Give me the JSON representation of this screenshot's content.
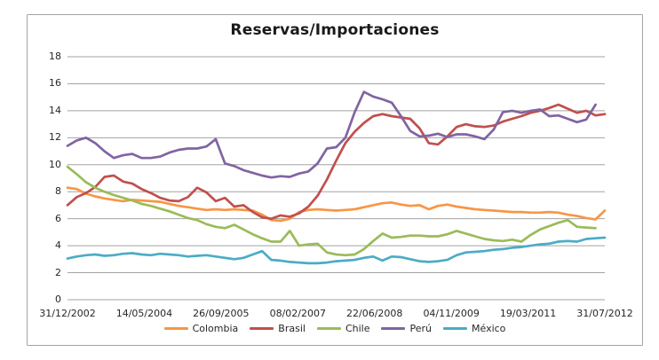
{
  "chart_data": {
    "type": "line",
    "title": "Reservas/Importaciones",
    "xlabel": "",
    "ylabel": "",
    "ylim": [
      0,
      18
    ],
    "ytick_step": 2,
    "grid": true,
    "gridline_color": "#a3a3a3",
    "legend_position": "bottom",
    "x_tick_labels": [
      "31/12/2002",
      "14/05/2004",
      "26/09/2005",
      "08/02/2007",
      "22/06/2008",
      "04/11/2009",
      "19/03/2011",
      "31/07/2012"
    ],
    "series": [
      {
        "name": "Colombia",
        "color": "#F79646",
        "values": [
          8.3,
          8.2,
          7.85,
          7.65,
          7.5,
          7.4,
          7.3,
          7.4,
          7.35,
          7.3,
          7.25,
          7.1,
          6.95,
          6.85,
          6.75,
          6.65,
          6.7,
          6.65,
          6.7,
          6.65,
          6.6,
          6.3,
          5.9,
          5.85,
          6.0,
          6.5,
          6.65,
          6.7,
          6.65,
          6.6,
          6.65,
          6.7,
          6.85,
          7.0,
          7.15,
          7.2,
          7.05,
          6.95,
          7.0,
          6.7,
          6.95,
          7.05,
          6.9,
          6.8,
          6.7,
          6.65,
          6.6,
          6.55,
          6.5,
          6.5,
          6.45,
          6.45,
          6.5,
          6.45,
          6.3,
          6.2,
          6.05,
          5.95,
          6.6
        ]
      },
      {
        "name": "Brasil",
        "color": "#C0504D",
        "values": [
          7.0,
          7.6,
          7.9,
          8.35,
          9.1,
          9.2,
          8.75,
          8.6,
          8.2,
          7.9,
          7.55,
          7.35,
          7.3,
          7.6,
          8.3,
          7.95,
          7.3,
          7.55,
          6.9,
          7.0,
          6.5,
          6.1,
          6.0,
          6.25,
          6.15,
          6.4,
          6.9,
          7.7,
          8.9,
          10.3,
          11.6,
          12.45,
          13.1,
          13.6,
          13.75,
          13.6,
          13.5,
          13.4,
          12.7,
          11.6,
          11.5,
          12.1,
          12.8,
          13.0,
          12.85,
          12.8,
          12.9,
          13.2,
          13.4,
          13.6,
          13.85,
          14.0,
          14.2,
          14.45,
          14.15,
          13.85,
          14.0,
          13.65,
          13.75
        ]
      },
      {
        "name": "Chile",
        "color": "#9BBB59",
        "values": [
          9.85,
          9.3,
          8.7,
          8.3,
          8.0,
          7.75,
          7.55,
          7.35,
          7.1,
          6.95,
          6.75,
          6.55,
          6.3,
          6.05,
          5.9,
          5.6,
          5.4,
          5.3,
          5.55,
          5.2,
          4.85,
          4.55,
          4.3,
          4.3,
          5.1,
          4.0,
          4.1,
          4.15,
          3.5,
          3.35,
          3.3,
          3.35,
          3.75,
          4.35,
          4.9,
          4.6,
          4.65,
          4.75,
          4.75,
          4.7,
          4.7,
          4.85,
          5.1,
          4.9,
          4.7,
          4.5,
          4.4,
          4.35,
          4.45,
          4.3,
          4.8,
          5.2,
          5.45,
          5.7,
          5.9,
          5.4,
          5.35,
          5.3
        ]
      },
      {
        "name": "Perú",
        "color": "#8064A2",
        "values": [
          11.4,
          11.8,
          12.0,
          11.6,
          11.0,
          10.5,
          10.7,
          10.8,
          10.5,
          10.5,
          10.6,
          10.9,
          11.1,
          11.2,
          11.2,
          11.35,
          11.9,
          10.1,
          9.9,
          9.6,
          9.4,
          9.2,
          9.05,
          9.15,
          9.1,
          9.35,
          9.5,
          10.1,
          11.2,
          11.3,
          12.0,
          13.9,
          15.4,
          15.05,
          14.85,
          14.6,
          13.6,
          12.5,
          12.1,
          12.15,
          12.3,
          12.05,
          12.25,
          12.25,
          12.1,
          11.9,
          12.6,
          13.9,
          14.0,
          13.85,
          14.0,
          14.1,
          13.6,
          13.65,
          13.4,
          13.15,
          13.35,
          14.45
        ]
      },
      {
        "name": "México",
        "color": "#4BACC6",
        "values": [
          3.05,
          3.2,
          3.3,
          3.35,
          3.25,
          3.3,
          3.4,
          3.45,
          3.35,
          3.3,
          3.4,
          3.35,
          3.3,
          3.2,
          3.25,
          3.3,
          3.2,
          3.1,
          3.0,
          3.1,
          3.35,
          3.6,
          2.95,
          2.9,
          2.8,
          2.75,
          2.7,
          2.7,
          2.75,
          2.85,
          2.9,
          2.95,
          3.1,
          3.2,
          2.9,
          3.2,
          3.15,
          3.0,
          2.85,
          2.8,
          2.85,
          2.95,
          3.3,
          3.5,
          3.55,
          3.6,
          3.7,
          3.75,
          3.85,
          3.9,
          4.0,
          4.1,
          4.15,
          4.3,
          4.35,
          4.3,
          4.5,
          4.55,
          4.6
        ]
      }
    ]
  }
}
